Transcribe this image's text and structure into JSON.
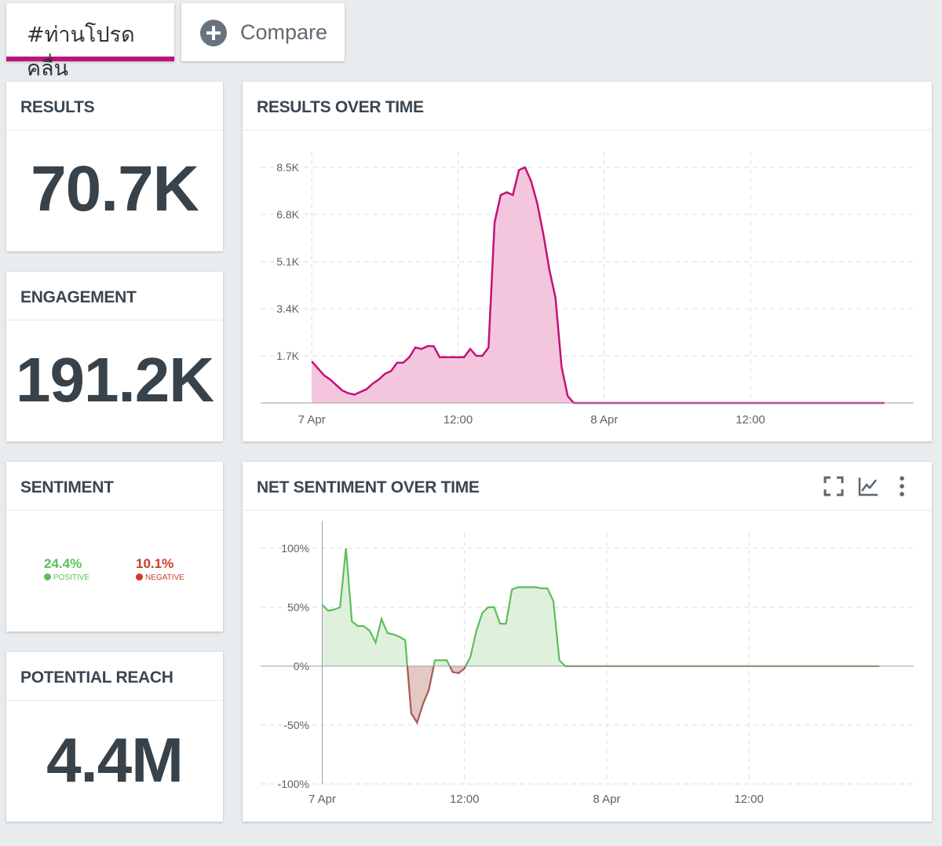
{
  "tabs": {
    "active_label": "#ท่านโปรดคลื่น",
    "compare_label": "Compare"
  },
  "icons": {
    "compare": "plus-circle-icon",
    "expand": "expand-icon",
    "chart_type": "line-chart-icon",
    "more": "more-vertical-icon",
    "positive_face": "smile-icon",
    "negative_face": "frown-icon"
  },
  "results": {
    "title": "RESULTS",
    "value": "70.7K"
  },
  "engagement": {
    "title": "ENGAGEMENT",
    "value": "191.2K"
  },
  "sentiment": {
    "title": "SENTIMENT",
    "positive_pct": "24.4%",
    "positive_label": "POSITIVE",
    "negative_pct": "10.1%",
    "negative_label": "NEGATIVE"
  },
  "reach": {
    "title": "POTENTIAL REACH",
    "value": "4.4M"
  },
  "results_chart": {
    "title": "RESULTS OVER TIME"
  },
  "sentiment_chart": {
    "title": "NET SENTIMENT OVER TIME"
  },
  "colors": {
    "accent": "#c2127a",
    "results_fill": "#f3c6de",
    "positive": "#5cbf5a",
    "positive_fill": "#dff1dc",
    "negative": "#cc3b2b",
    "negative_stroke": "#a85a4e",
    "negative_fill": "#e3c8c3"
  },
  "chart_data": [
    {
      "type": "area",
      "title": "RESULTS OVER TIME",
      "x_ticks": [
        "7 Apr",
        "12:00",
        "8 Apr",
        "12:00"
      ],
      "x_tick_hours": [
        0,
        12,
        24,
        36
      ],
      "xlim": [
        -4.2,
        49.4
      ],
      "y_ticks": [
        "1.7K",
        "3.4K",
        "5.1K",
        "6.8K",
        "8.5K"
      ],
      "y_tick_values": [
        1700,
        3400,
        5100,
        6800,
        8500
      ],
      "ylim": [
        0,
        8500
      ],
      "series": [
        {
          "name": "Results",
          "x": [
            0,
            0.5,
            1,
            1.5,
            2,
            2.5,
            3,
            3.5,
            4,
            4.5,
            5,
            5.5,
            6,
            6.5,
            7,
            7.5,
            8,
            8.5,
            9,
            9.5,
            10,
            10.5,
            11,
            11.5,
            12,
            12.5,
            13,
            13.5,
            14,
            14.5,
            15,
            15.5,
            16,
            16.5,
            17,
            17.5,
            18,
            18.5,
            19,
            19.5,
            20,
            20.5,
            21,
            21.5,
            22,
            22.5,
            23,
            23.5,
            24,
            24.5,
            25,
            26,
            27,
            28,
            30,
            34,
            40,
            47
          ],
          "values": [
            1500,
            1250,
            1000,
            850,
            650,
            450,
            350,
            300,
            400,
            500,
            700,
            850,
            1050,
            1150,
            1450,
            1450,
            1650,
            2000,
            1950,
            2050,
            2050,
            1650,
            1650,
            1650,
            1650,
            1650,
            1950,
            1700,
            1700,
            2000,
            6500,
            7500,
            7600,
            7500,
            8400,
            8500,
            8000,
            7200,
            6100,
            4800,
            3800,
            1300,
            250,
            0,
            0,
            0,
            0,
            0,
            0,
            0,
            0,
            0,
            0,
            0,
            0,
            0,
            0,
            0
          ]
        }
      ]
    },
    {
      "type": "area",
      "title": "NET SENTIMENT OVER TIME",
      "x_ticks": [
        "7 Apr",
        "12:00",
        "8 Apr",
        "12:00"
      ],
      "x_tick_hours": [
        0,
        12,
        24,
        36
      ],
      "xlim": [
        -5.2,
        49.9
      ],
      "y_ticks": [
        "100%",
        "50%",
        "0%",
        "-50%",
        "-100%"
      ],
      "y_tick_values": [
        100,
        50,
        0,
        -50,
        -100
      ],
      "ylim": [
        -100,
        100
      ],
      "series": [
        {
          "name": "Net sentiment",
          "x": [
            0,
            0.5,
            1,
            1.5,
            2,
            2.5,
            3,
            3.5,
            4,
            4.5,
            5,
            5.5,
            6,
            6.5,
            7,
            7.5,
            8,
            8.5,
            9,
            9.5,
            10,
            10.5,
            11,
            11.5,
            12,
            12.5,
            13,
            13.5,
            14,
            14.5,
            15,
            15.5,
            16,
            16.5,
            17,
            17.5,
            18,
            18.5,
            19,
            19.5,
            20,
            20.5,
            21,
            21.5,
            22,
            22.5,
            23,
            23.5,
            24,
            24.5,
            25,
            25.5,
            26,
            27,
            30,
            34,
            40,
            47
          ],
          "values": [
            52,
            47,
            48,
            50,
            100,
            38,
            34,
            34,
            30,
            20,
            40,
            28,
            27,
            25,
            22,
            -40,
            -48,
            -32,
            -20,
            5,
            5,
            5,
            -5,
            -6,
            -2,
            8,
            30,
            45,
            50,
            50,
            36,
            36,
            65,
            67,
            67,
            67,
            67,
            66,
            66,
            55,
            5,
            0,
            0,
            0,
            0,
            0,
            0,
            0,
            0,
            0,
            0,
            0,
            0,
            0,
            0,
            0,
            0,
            0
          ]
        }
      ]
    }
  ]
}
